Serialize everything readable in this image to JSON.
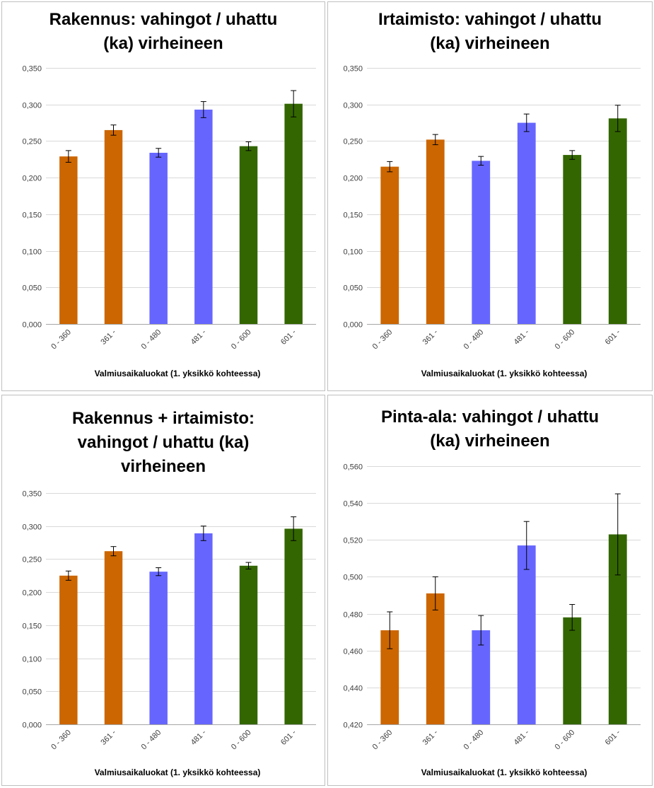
{
  "chart_data": [
    {
      "type": "bar",
      "title": "Rakennus: vahingot / uhattu\n(ka) virheineen",
      "xlabel": "Valmiusaikaluokat (1. yksikkö kohteessa)",
      "categories": [
        "0 - 360",
        "361 -",
        "0 - 480",
        "481 -",
        "0 - 600",
        "601 -"
      ],
      "values": [
        0.229,
        0.265,
        0.234,
        0.293,
        0.243,
        0.301
      ],
      "errors": [
        0.008,
        0.007,
        0.006,
        0.011,
        0.006,
        0.018
      ],
      "colors": [
        "#cc6600",
        "#cc6600",
        "#6666ff",
        "#6666ff",
        "#336600",
        "#336600"
      ],
      "ylim": [
        0,
        0.35
      ],
      "yticks": [
        "0,000",
        "0,050",
        "0,100",
        "0,150",
        "0,200",
        "0,250",
        "0,300",
        "0,350"
      ],
      "grid": true
    },
    {
      "type": "bar",
      "title": "Irtaimisto: vahingot / uhattu\n(ka) virheineen",
      "xlabel": "Valmiusaikaluokat (1. yksikkö kohteessa)",
      "categories": [
        "0 - 360",
        "361 -",
        "0 - 480",
        "481 -",
        "0 - 600",
        "601 -"
      ],
      "values": [
        0.215,
        0.252,
        0.223,
        0.275,
        0.231,
        0.281
      ],
      "errors": [
        0.007,
        0.007,
        0.006,
        0.012,
        0.006,
        0.018
      ],
      "colors": [
        "#cc6600",
        "#cc6600",
        "#6666ff",
        "#6666ff",
        "#336600",
        "#336600"
      ],
      "ylim": [
        0,
        0.35
      ],
      "yticks": [
        "0,000",
        "0,050",
        "0,100",
        "0,150",
        "0,200",
        "0,250",
        "0,300",
        "0,350"
      ],
      "grid": true
    },
    {
      "type": "bar",
      "title": "Rakennus + irtaimisto:\nvahingot / uhattu (ka)\nvirheineen",
      "xlabel": "Valmiusaikaluokat (1. yksikkö kohteessa)",
      "categories": [
        "0 - 360",
        "361 -",
        "0 - 480",
        "481 -",
        "0 - 600",
        "601 -"
      ],
      "values": [
        0.225,
        0.262,
        0.231,
        0.289,
        0.24,
        0.296
      ],
      "errors": [
        0.007,
        0.007,
        0.006,
        0.011,
        0.005,
        0.018
      ],
      "colors": [
        "#cc6600",
        "#cc6600",
        "#6666ff",
        "#6666ff",
        "#336600",
        "#336600"
      ],
      "ylim": [
        0,
        0.35
      ],
      "yticks": [
        "0,000",
        "0,050",
        "0,100",
        "0,150",
        "0,200",
        "0,250",
        "0,300",
        "0,350"
      ],
      "grid": true
    },
    {
      "type": "bar",
      "title": "Pinta-ala: vahingot / uhattu\n(ka) virheineen",
      "xlabel": "Valmiusaikaluokat (1. yksikkö kohteessa)",
      "categories": [
        "0 - 360",
        "361 -",
        "0 - 480",
        "481 -",
        "0 - 600",
        "601 -"
      ],
      "values": [
        0.471,
        0.491,
        0.471,
        0.517,
        0.478,
        0.523
      ],
      "errors": [
        0.01,
        0.009,
        0.008,
        0.013,
        0.007,
        0.022
      ],
      "colors": [
        "#cc6600",
        "#cc6600",
        "#6666ff",
        "#6666ff",
        "#336600",
        "#336600"
      ],
      "ylim": [
        0.42,
        0.56
      ],
      "yticks": [
        "0,420",
        "0,440",
        "0,460",
        "0,480",
        "0,500",
        "0,520",
        "0,540",
        "0,560"
      ],
      "grid": true
    }
  ]
}
